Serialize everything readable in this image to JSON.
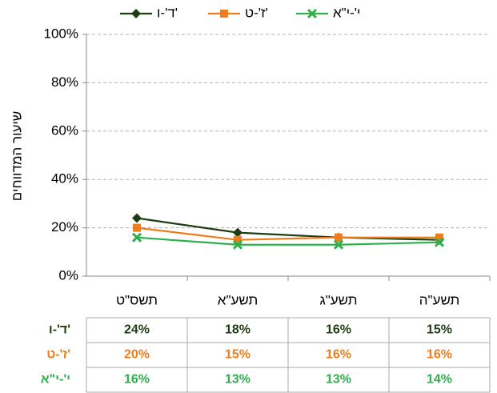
{
  "chart_data": {
    "type": "line",
    "y_label": "שיעור המדווחים",
    "categories": [
      "תשס\"ט",
      "תשע\"א",
      "תשע\"ג",
      "תשע\"ה"
    ],
    "series": [
      {
        "name": "ד'-ו'",
        "color": "#1e3d12",
        "marker": "diamond",
        "values": [
          24,
          18,
          16,
          15
        ],
        "value_labels": [
          "24%",
          "18%",
          "16%",
          "15%"
        ]
      },
      {
        "name": "ז'-ט'",
        "color": "#f07d1c",
        "marker": "square",
        "values": [
          20,
          15,
          16,
          16
        ],
        "value_labels": [
          "20%",
          "15%",
          "16%",
          "16%"
        ]
      },
      {
        "name": "י'-י\"א",
        "color": "#2fb04c",
        "marker": "x",
        "values": [
          16,
          13,
          13,
          14
        ],
        "value_labels": [
          "16%",
          "13%",
          "13%",
          "14%"
        ]
      }
    ],
    "ylim": [
      0,
      100
    ],
    "yticks": [
      {
        "value": 0,
        "label": "0%"
      },
      {
        "value": 20,
        "label": "20%"
      },
      {
        "value": 40,
        "label": "40%"
      },
      {
        "value": 60,
        "label": "60%"
      },
      {
        "value": 80,
        "label": "80%"
      },
      {
        "value": 100,
        "label": "100%"
      }
    ],
    "grid": true,
    "legend": "top"
  }
}
